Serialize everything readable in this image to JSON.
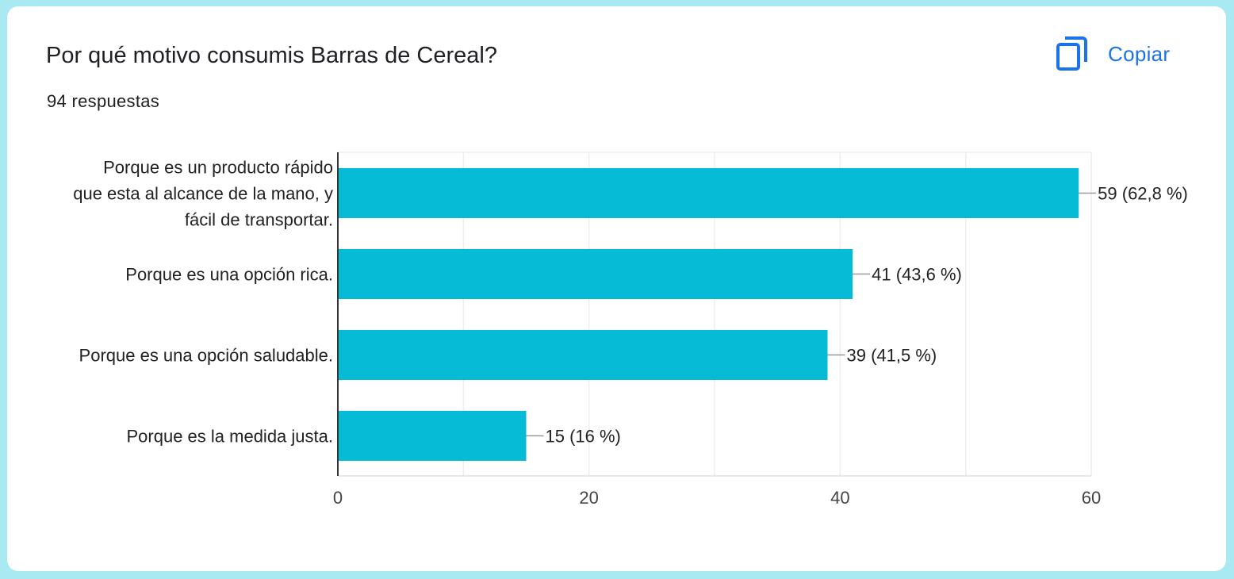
{
  "header": {
    "title": "Por qué motivo consumis Barras de Cereal?",
    "responses": "94 respuestas",
    "copy_label": "Copiar",
    "copy_icon": "copy-icon"
  },
  "colors": {
    "bar": "#06bbd6",
    "accent": "#1a73e8",
    "background": "#a9e9f1"
  },
  "chart_data": {
    "type": "bar",
    "orientation": "horizontal",
    "categories": [
      [
        "Porque es un producto rápido",
        "que esta al alcance de la mano, y",
        "fácil de transportar."
      ],
      [
        "Porque es una opción rica."
      ],
      [
        "Porque es una opción saludable."
      ],
      [
        "Porque es la medida justa."
      ]
    ],
    "values": [
      59,
      41,
      39,
      15
    ],
    "value_labels": [
      "59 (62,8 %)",
      "41 (43,6 %)",
      "39 (41,5 %)",
      "15 (16 %)"
    ],
    "x_ticks": [
      "0",
      "20",
      "40",
      "60"
    ],
    "xlim": [
      0,
      60
    ],
    "grid": true,
    "legend": "none"
  }
}
